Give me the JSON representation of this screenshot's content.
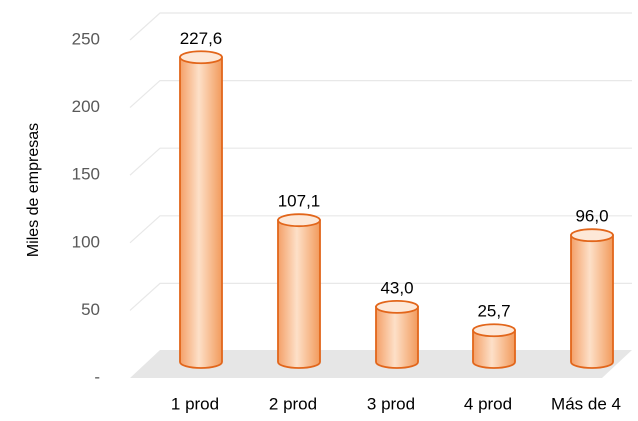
{
  "chart_data": {
    "type": "bar",
    "y_label": "Miles de empresas",
    "categories": [
      "1 prod",
      "2 prod",
      "3 prod",
      "4 prod",
      "Más de 4"
    ],
    "values": [
      227.6,
      107.1,
      43.0,
      25.7,
      96.0
    ],
    "value_labels": [
      "227,6",
      "107,1",
      "43,0",
      "25,7",
      "96,0"
    ],
    "color": "#f9b98a",
    "edge_color": "#e2661b",
    "ylim": [
      0,
      250
    ],
    "yticks": [
      {
        "value": 0,
        "label": "-"
      },
      50,
      100,
      150,
      200,
      250
    ],
    "grid": true
  }
}
